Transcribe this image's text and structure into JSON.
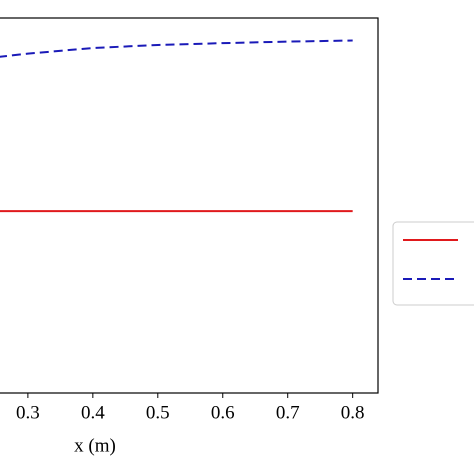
{
  "chart_data": {
    "type": "line",
    "x_label": "x (m)",
    "x": [
      0.254,
      0.3,
      0.4,
      0.5,
      0.6,
      0.7,
      0.8
    ],
    "series": [
      {
        "color": "#e0191c",
        "dash": false,
        "values": [
          0.485,
          0.485,
          0.485,
          0.485,
          0.485,
          0.485,
          0.485
        ]
      },
      {
        "color": "#1a1ab8",
        "dash": true,
        "values": [
          0.896,
          0.905,
          0.92,
          0.928,
          0.933,
          0.937,
          0.94
        ]
      }
    ],
    "xlim": [
      0.254,
      0.839
    ],
    "ylim": [
      0,
      1
    ],
    "xticks": [
      0.3,
      0.4,
      0.5,
      0.6,
      0.7,
      0.8
    ],
    "legend": "right"
  }
}
